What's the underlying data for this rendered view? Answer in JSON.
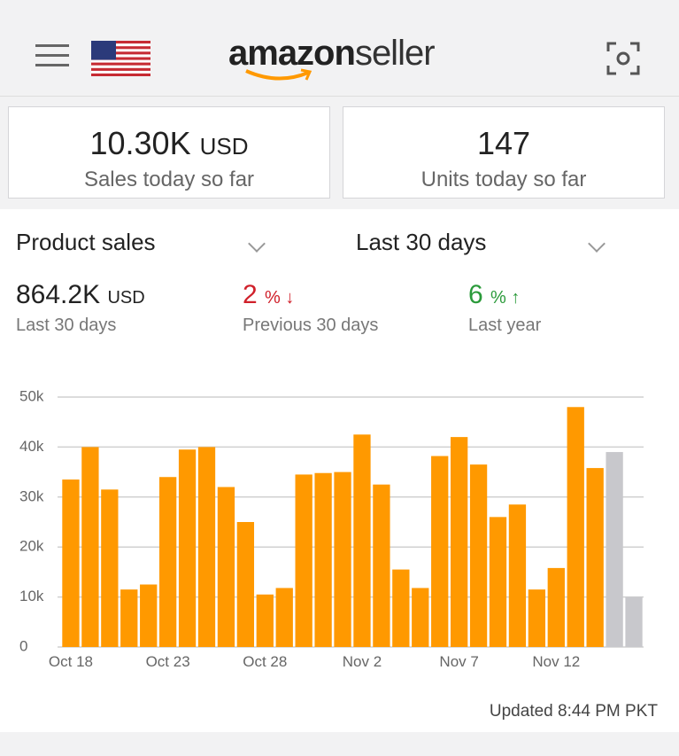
{
  "header": {
    "logo_brand": "amazon",
    "logo_product": "seller"
  },
  "cards": [
    {
      "value": "10.30K",
      "unit": "USD",
      "label": "Sales today so far"
    },
    {
      "value": "147",
      "label": "Units today so far"
    }
  ],
  "filters": {
    "metric": "Product sales",
    "period": "Last 30 days"
  },
  "metrics": [
    {
      "value": "864.2K",
      "unit": "USD",
      "label": "Last 30 days"
    },
    {
      "value": "2",
      "unit": "%",
      "label": "Previous 30 days"
    },
    {
      "value": "6",
      "unit": "%",
      "label": "Last year"
    }
  ],
  "chart_data": {
    "type": "bar",
    "categories": [
      "Oct 18",
      null,
      null,
      null,
      null,
      "Oct 23",
      null,
      null,
      null,
      null,
      "Oct 28",
      null,
      null,
      null,
      null,
      "Nov 2",
      null,
      null,
      null,
      null,
      "Nov 7",
      null,
      null,
      null,
      null,
      "Nov 12",
      null,
      null,
      null,
      null
    ],
    "values": [
      33500,
      40000,
      31500,
      11500,
      12500,
      34000,
      39500,
      40000,
      32000,
      25000,
      10500,
      11800,
      34500,
      34800,
      35000,
      42500,
      32500,
      15500,
      11800,
      38200,
      42000,
      36500,
      26000,
      28500,
      11500,
      15800,
      48000,
      35800,
      39000,
      10000
    ],
    "colors": [
      "#ff9900",
      "#ff9900",
      "#ff9900",
      "#ff9900",
      "#ff9900",
      "#ff9900",
      "#ff9900",
      "#ff9900",
      "#ff9900",
      "#ff9900",
      "#ff9900",
      "#ff9900",
      "#ff9900",
      "#ff9900",
      "#ff9900",
      "#ff9900",
      "#ff9900",
      "#ff9900",
      "#ff9900",
      "#ff9900",
      "#ff9900",
      "#ff9900",
      "#ff9900",
      "#ff9900",
      "#ff9900",
      "#ff9900",
      "#ff9900",
      "#ff9900",
      "#c8c8cc",
      "#c8c8cc"
    ],
    "ylim": [
      0,
      50000
    ],
    "yticks": [
      0,
      {
        "value": 10000,
        "label": "10k"
      },
      {
        "value": 20000,
        "label": "20k"
      },
      {
        "value": 30000,
        "label": "30k"
      },
      {
        "value": 40000,
        "label": "40k"
      },
      {
        "value": 50000,
        "label": "50k"
      }
    ],
    "grid": true
  },
  "footer": {
    "updated": "Updated 8:44 PM PKT"
  }
}
